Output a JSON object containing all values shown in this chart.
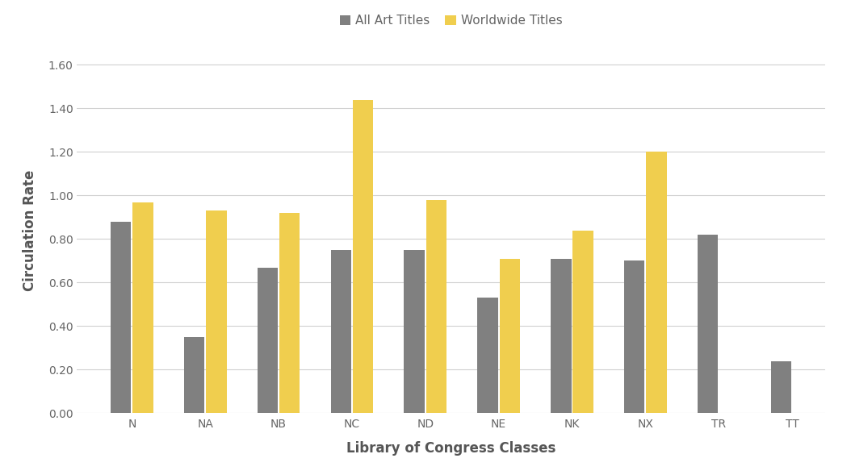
{
  "categories": [
    "N",
    "NA",
    "NB",
    "NC",
    "ND",
    "NE",
    "NK",
    "NX",
    "TR",
    "TT"
  ],
  "all_art_titles": [
    0.88,
    0.35,
    0.67,
    0.75,
    0.75,
    0.53,
    0.71,
    0.7,
    0.82,
    0.24
  ],
  "worldwide_titles": [
    0.97,
    0.93,
    0.92,
    1.44,
    0.98,
    0.71,
    0.84,
    1.2,
    null,
    null
  ],
  "bar_color_gray": "#808080",
  "bar_color_yellow": "#F0CE4E",
  "xlabel": "Library of Congress Classes",
  "ylabel": "Circulation Rate",
  "ylim": [
    0.0,
    1.68
  ],
  "yticks": [
    0.0,
    0.2,
    0.4,
    0.6,
    0.8,
    1.0,
    1.2,
    1.4,
    1.6
  ],
  "legend_labels": [
    "All Art Titles",
    "Worldwide Titles"
  ],
  "background_color": "#ffffff",
  "grid_color": "#d0d0d0",
  "axis_label_fontsize": 12,
  "tick_fontsize": 10,
  "legend_fontsize": 11,
  "bar_width": 0.28,
  "bar_gap": 0.02
}
